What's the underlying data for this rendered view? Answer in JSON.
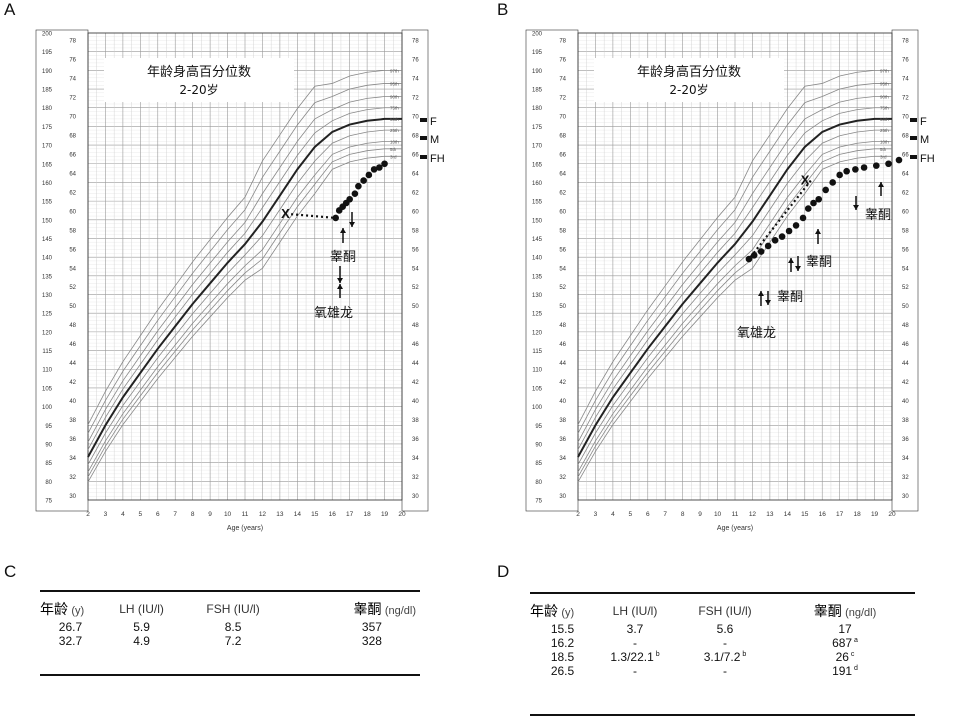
{
  "panels": {
    "a": "A",
    "b": "B",
    "c": "C",
    "d": "D"
  },
  "chart_data": [
    {
      "type": "line",
      "panel": "A",
      "title": "年龄身高百分位数",
      "subtitle": "2-20岁",
      "xlabel": "Age (years)",
      "xlim": [
        2,
        20
      ],
      "ylim_cm": [
        75,
        200
      ],
      "ylim_in": [
        30,
        79
      ],
      "x_ticks": [
        2,
        3,
        4,
        5,
        6,
        7,
        8,
        9,
        10,
        11,
        12,
        13,
        14,
        15,
        16,
        17,
        18,
        19,
        20
      ],
      "percentile_labels": [
        "97th",
        "95th",
        "90th",
        "75th",
        "50th",
        "25th",
        "10th",
        "5th",
        "3rd"
      ],
      "right_markers": [
        "F",
        "M",
        "FH"
      ],
      "series": [
        {
          "name": "patient",
          "x": [
            16.2,
            16.4,
            16.6,
            16.8,
            17.0,
            17.3,
            17.5,
            17.8,
            18.1,
            18.4,
            18.7,
            19.0
          ],
          "y": [
            150.5,
            152.5,
            153.5,
            154.5,
            155.5,
            157,
            159,
            160.5,
            162,
            163.5,
            164,
            165
          ]
        }
      ],
      "x_marker": {
        "x": 13.3,
        "y": 151.5,
        "symbol": "X"
      },
      "annotations": [
        "睾酮",
        "氧雄龙"
      ]
    },
    {
      "type": "line",
      "panel": "B",
      "title": "年龄身高百分位数",
      "subtitle": "2-20岁",
      "xlabel": "Age (years)",
      "xlim": [
        2,
        20
      ],
      "ylim_cm": [
        75,
        200
      ],
      "ylim_in": [
        30,
        79
      ],
      "x_ticks": [
        2,
        3,
        4,
        5,
        6,
        7,
        8,
        9,
        10,
        11,
        12,
        13,
        14,
        15,
        16,
        17,
        18,
        19,
        20
      ],
      "percentile_labels": [
        "97th",
        "95th",
        "90th",
        "75th",
        "50th",
        "25th",
        "10th",
        "5th",
        "3rd"
      ],
      "right_markers": [
        "F",
        "M",
        "FH"
      ],
      "series": [
        {
          "name": "patient",
          "x": [
            11.8,
            12.1,
            12.5,
            12.9,
            13.3,
            13.7,
            14.1,
            14.5,
            14.9,
            15.2,
            15.5,
            15.8,
            16.2,
            16.6,
            17.0,
            17.4,
            17.9,
            18.4,
            19.1,
            19.8,
            20.4
          ],
          "y": [
            139.5,
            140.5,
            141.5,
            143,
            144.5,
            145.5,
            147,
            148.5,
            150.5,
            153,
            154.5,
            155.5,
            158,
            160,
            162,
            163,
            163.5,
            164,
            164.5,
            165,
            166
          ]
        }
      ],
      "x_marker": {
        "x": 15.0,
        "y": 160.5,
        "symbol": "X"
      },
      "annotations": [
        "睾酮",
        "睾酮",
        "睾酮",
        "氧雄龙"
      ]
    }
  ],
  "table_c": {
    "headers": {
      "age": "年龄",
      "age_unit": "(y)",
      "lh": "LH (IU/l)",
      "fsh": "FSH (IU/l)",
      "t": "睾酮",
      "t_unit": "(ng/dl)"
    },
    "rows": [
      {
        "age": "26.7",
        "lh": "5.9",
        "fsh": "8.5",
        "t": "357"
      },
      {
        "age": "32.7",
        "lh": "4.9",
        "fsh": "7.2",
        "t": "328"
      }
    ]
  },
  "table_d": {
    "headers": {
      "age": "年龄",
      "age_unit": "(y)",
      "lh": "LH (IU/l)",
      "fsh": "FSH (IU/l)",
      "t": "睾酮",
      "t_unit": "(ng/dl)"
    },
    "rows": [
      {
        "age": "15.5",
        "lh": "3.7",
        "lh_sup": "",
        "fsh": "5.6",
        "fsh_sup": "",
        "t": "17",
        "t_sup": ""
      },
      {
        "age": "16.2",
        "lh": "-",
        "lh_sup": "",
        "fsh": "-",
        "fsh_sup": "",
        "t": "687",
        "t_sup": "a"
      },
      {
        "age": "18.5",
        "lh": "1.3/22.1",
        "lh_sup": "b",
        "fsh": "3.1/7.2",
        "fsh_sup": "b",
        "t": "26",
        "t_sup": "c"
      },
      {
        "age": "26.5",
        "lh": "-",
        "lh_sup": "",
        "fsh": "-",
        "fsh_sup": "",
        "t": "191",
        "t_sup": "d"
      }
    ]
  }
}
